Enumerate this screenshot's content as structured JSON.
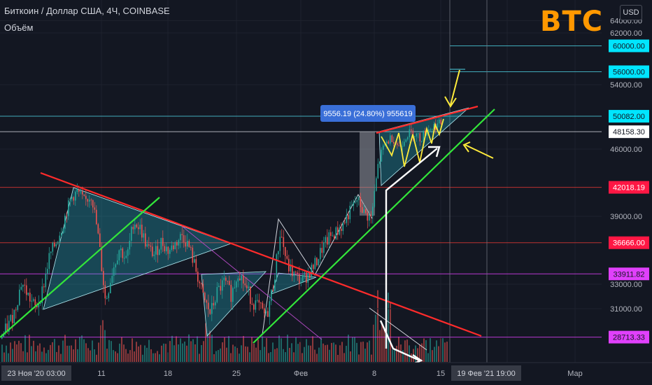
{
  "header": {
    "symbol": "Биткоин / Доллар США, 4Ч, COINBASE",
    "volume_label": "Объём",
    "badge": "BTC",
    "currency_button": "USD"
  },
  "colors": {
    "background": "#131722",
    "red_line": "#ff2b2b",
    "green_line": "#33e63a",
    "cyan_label": "#00e5ff",
    "magenta_label": "#e040fb",
    "red_label": "#ff1744",
    "yellow_arrow": "#ffeb3b",
    "measure_label": "#2962ff"
  },
  "chart_data": {
    "type": "candlestick",
    "ylim": [
      27000,
      66000
    ],
    "y_ticks": [
      {
        "value": 31000,
        "label": "31000.00"
      },
      {
        "value": 33000,
        "label": "33000.00"
      },
      {
        "value": 39000,
        "label": "39000.00"
      },
      {
        "value": 46000,
        "label": "46000.00"
      },
      {
        "value": 54000,
        "label": "54000.00"
      },
      {
        "value": 62000,
        "label": "62000.00"
      },
      {
        "value": 64000,
        "label": "64000.00"
      }
    ],
    "x_ticks": [
      "23 Ноя '20  03:00",
      "11",
      "18",
      "25",
      "Фев",
      "8",
      "15",
      "19 Фев '21  19:00",
      "Мар"
    ],
    "price_levels": [
      {
        "value": 60000,
        "label": "60000.00",
        "style": "cyan"
      },
      {
        "value": 56000,
        "label": "56000.00",
        "style": "cyan"
      },
      {
        "value": 50082,
        "label": "50082.00",
        "style": "cyan"
      },
      {
        "value": 48158.3,
        "label": "48158.30",
        "style": "white"
      },
      {
        "value": 42018.19,
        "label": "42018.19",
        "style": "red"
      },
      {
        "value": 36666,
        "label": "36666.00",
        "style": "red"
      },
      {
        "value": 33911.82,
        "label": "33911.82",
        "style": "magenta"
      },
      {
        "value": 28713.33,
        "label": "28713.33",
        "style": "magenta"
      }
    ],
    "measure_label": "9556.19 (24.80%) 955619",
    "close_price_path": [
      [
        0,
        28600
      ],
      [
        10,
        29500
      ],
      [
        20,
        30800
      ],
      [
        30,
        33200
      ],
      [
        40,
        32000
      ],
      [
        50,
        31000
      ],
      [
        60,
        32500
      ],
      [
        70,
        35500
      ],
      [
        80,
        36800
      ],
      [
        90,
        38500
      ],
      [
        100,
        40800
      ],
      [
        110,
        41600
      ],
      [
        120,
        40500
      ],
      [
        130,
        41200
      ],
      [
        140,
        37000
      ],
      [
        150,
        31500
      ],
      [
        160,
        34200
      ],
      [
        170,
        36200
      ],
      [
        180,
        35100
      ],
      [
        190,
        38600
      ],
      [
        200,
        37900
      ],
      [
        210,
        36200
      ],
      [
        220,
        35600
      ],
      [
        230,
        36800
      ],
      [
        240,
        35900
      ],
      [
        250,
        36600
      ],
      [
        260,
        37400
      ],
      [
        270,
        36200
      ],
      [
        280,
        34100
      ],
      [
        290,
        31800
      ],
      [
        300,
        30600
      ],
      [
        310,
        32400
      ],
      [
        320,
        33200
      ],
      [
        330,
        32100
      ],
      [
        340,
        34200
      ],
      [
        350,
        32800
      ],
      [
        360,
        31600
      ],
      [
        370,
        31100
      ],
      [
        380,
        30300
      ],
      [
        390,
        33000
      ],
      [
        400,
        37700
      ],
      [
        410,
        34600
      ],
      [
        420,
        33800
      ],
      [
        430,
        33300
      ],
      [
        440,
        33900
      ],
      [
        450,
        34800
      ],
      [
        460,
        36200
      ],
      [
        470,
        37100
      ],
      [
        480,
        37600
      ],
      [
        490,
        38300
      ],
      [
        500,
        39600
      ],
      [
        510,
        40800
      ],
      [
        520,
        39300
      ],
      [
        530,
        38800
      ],
      [
        540,
        44500
      ],
      [
        550,
        46700
      ],
      [
        560,
        47500
      ],
      [
        570,
        46200
      ],
      [
        580,
        47800
      ],
      [
        590,
        48100
      ],
      [
        600,
        47300
      ],
      [
        610,
        48400
      ],
      [
        620,
        48900
      ],
      [
        630,
        49200
      ]
    ]
  }
}
